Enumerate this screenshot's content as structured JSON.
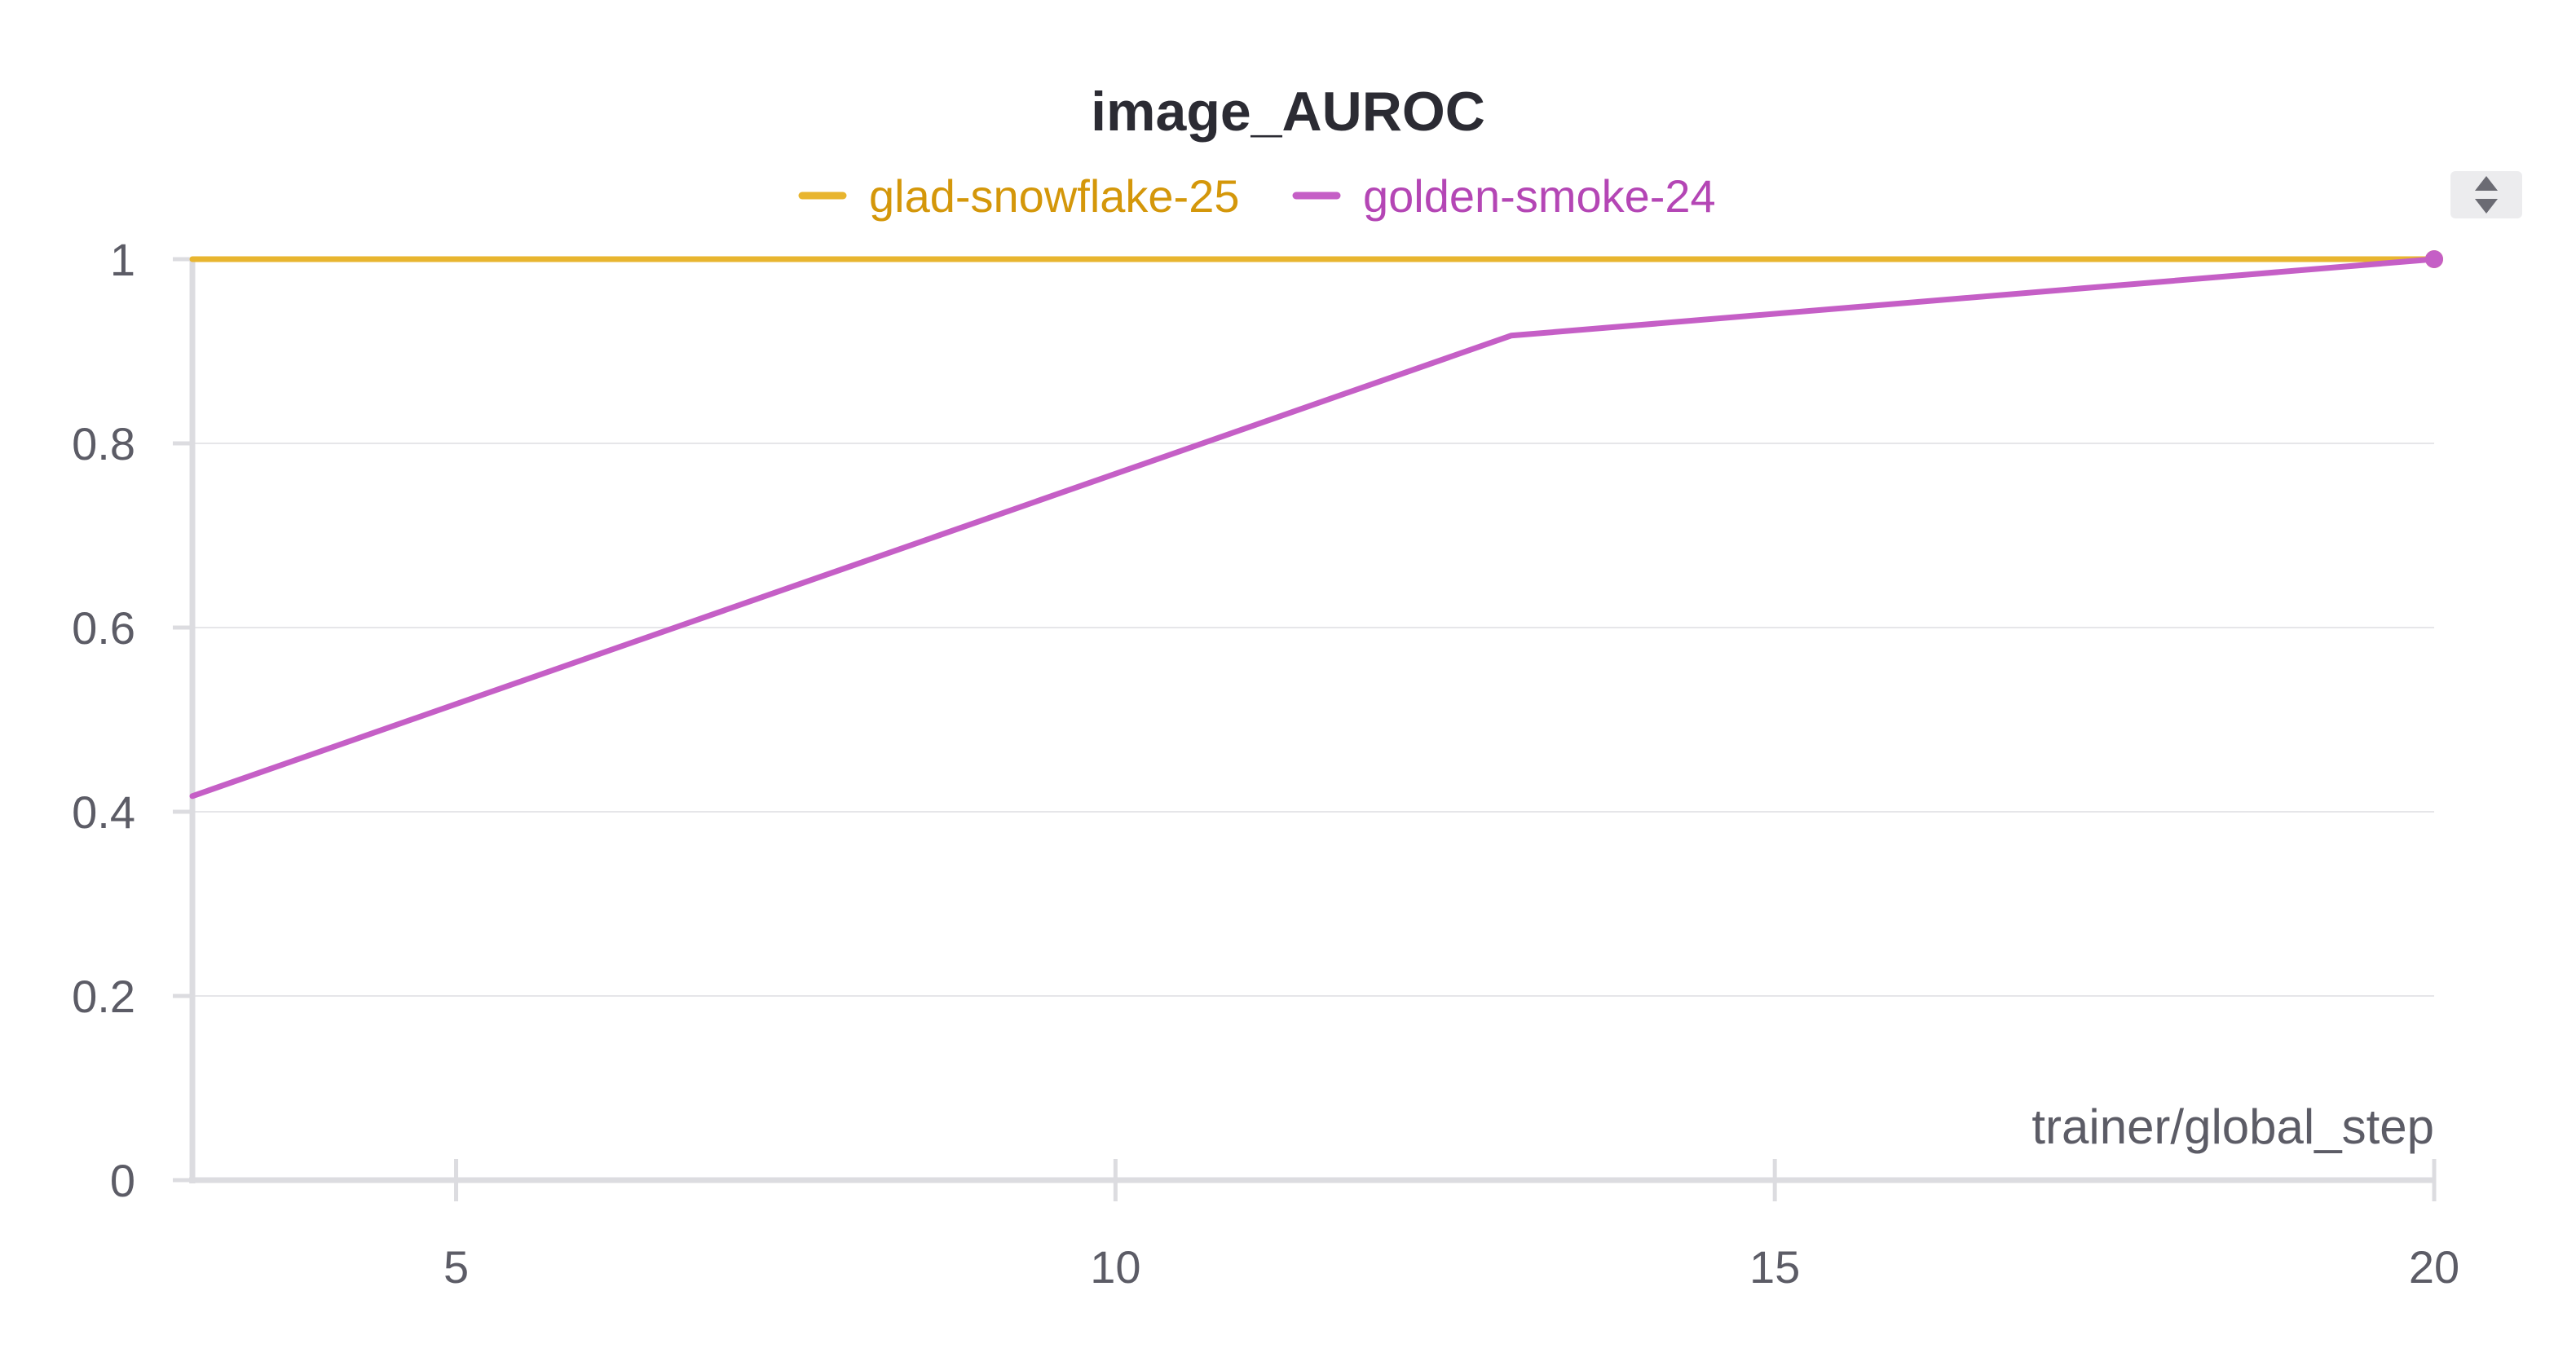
{
  "chart_data": {
    "type": "line",
    "title": "image_AUROC",
    "xlabel": "trainer/global_step",
    "ylabel": "",
    "xlim": [
      3,
      20
    ],
    "ylim": [
      0,
      1
    ],
    "x_ticks": [
      5,
      10,
      15,
      20
    ],
    "y_ticks": [
      0,
      0.2,
      0.4,
      0.6,
      0.8,
      1
    ],
    "y_tick_labels": [
      "0",
      "0.2",
      "0.4",
      "0.6",
      "0.8",
      "1"
    ],
    "grid": true,
    "legend_position": "top-center",
    "series": [
      {
        "name": "glad-snowflake-25",
        "color": "#e8b52f",
        "label_color": "#d4970a",
        "x": [
          3,
          20
        ],
        "values": [
          1,
          1
        ]
      },
      {
        "name": "golden-smoke-24",
        "color": "#c55fc6",
        "label_color": "#b446b5",
        "x": [
          3,
          13,
          20
        ],
        "values": [
          0.417,
          0.917,
          1
        ]
      }
    ]
  },
  "controls": {
    "sort_icon": "sort-up-down-icon"
  }
}
